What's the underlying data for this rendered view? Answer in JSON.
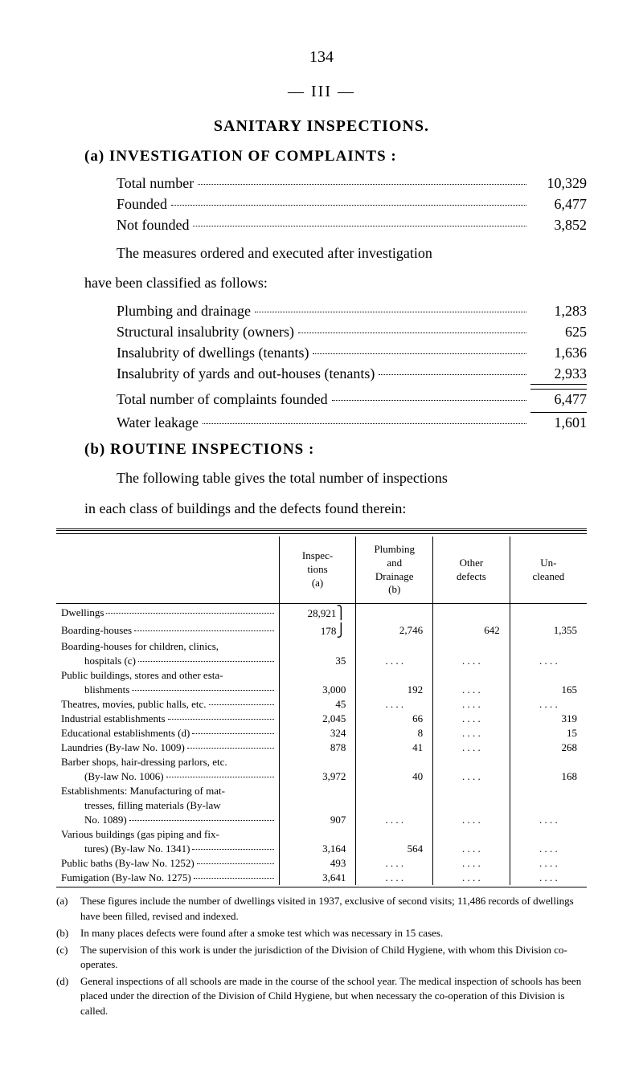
{
  "page_number": "134",
  "section_number": "— III —",
  "title": "SANITARY INSPECTIONS.",
  "subsection_a": {
    "marker": "(a)",
    "title": "INVESTIGATION OF COMPLAINTS :",
    "items": [
      {
        "label": "Total number",
        "value": "10,329"
      },
      {
        "label": "Founded",
        "value": "6,477"
      },
      {
        "label": "Not founded",
        "value": "3,852"
      }
    ],
    "paragraph": "The measures ordered and executed after investigation have been classified as follows:",
    "followup_items": [
      {
        "label": "Plumbing and drainage",
        "value": "1,283"
      },
      {
        "label": "Structural insalubrity (owners)",
        "value": "625"
      },
      {
        "label": "Insalubrity of dwellings (tenants)",
        "value": "1,636"
      },
      {
        "label": "Insalubrity of yards and out-houses (tenants)",
        "value": "2,933",
        "underline": true
      },
      {
        "label": "Total number of complaints founded",
        "value": "6,477",
        "topline": true
      },
      {
        "label": "Water leakage",
        "value": "1,601",
        "topline": true
      }
    ]
  },
  "subsection_b": {
    "marker": "(b)",
    "title": "ROUTINE INSPECTIONS :",
    "paragraph": "The following table gives the total number of inspections in each class of buildings and the defects found therein:"
  },
  "table": {
    "headers": [
      "",
      "Inspec-\ntions\n(a)",
      "Plumbing\nand\nDrainage\n(b)",
      "Other\ndefects",
      "Un-\ncleaned"
    ],
    "rows": [
      {
        "label": "Dwellings",
        "cols": [
          "28,921",
          "",
          "",
          ""
        ],
        "brace_start": true
      },
      {
        "label": "Boarding-houses",
        "cols": [
          "178",
          "2,746",
          "642",
          "1,355"
        ],
        "brace_end": true
      },
      {
        "label": "Boarding-houses for children, clinics,",
        "cols": [
          "",
          "",
          "",
          ""
        ],
        "nodots": true
      },
      {
        "label": "hospitals (c)",
        "cols": [
          "35",
          ". . . .",
          ". . . .",
          ". . . ."
        ],
        "indent": true
      },
      {
        "label": "Public buildings, stores and other esta-",
        "cols": [
          "",
          "",
          "",
          ""
        ],
        "nodots": true
      },
      {
        "label": "blishments",
        "cols": [
          "3,000",
          "192",
          ". . . .",
          "165"
        ],
        "indent": true
      },
      {
        "label": "Theatres, movies, public halls, etc.",
        "cols": [
          "45",
          ". . . .",
          ". . . .",
          ". . . ."
        ]
      },
      {
        "label": "Industrial establishments",
        "cols": [
          "2,045",
          "66",
          ". . . .",
          "319"
        ]
      },
      {
        "label": "Educational establishments (d)",
        "cols": [
          "324",
          "8",
          ". . . .",
          "15"
        ]
      },
      {
        "label": "Laundries (By-law No. 1009)",
        "cols": [
          "878",
          "41",
          ". . . .",
          "268"
        ]
      },
      {
        "label": "Barber shops, hair-dressing parlors, etc.",
        "cols": [
          "",
          "",
          "",
          ""
        ],
        "nodots": true
      },
      {
        "label": "(By-law No. 1006)",
        "cols": [
          "3,972",
          "40",
          ". . . .",
          "168"
        ],
        "indent": true
      },
      {
        "label": "Establishments: Manufacturing of mat-",
        "cols": [
          "",
          "",
          "",
          ""
        ],
        "nodots": true
      },
      {
        "label": "tresses, filling materials (By-law",
        "cols": [
          "",
          "",
          "",
          ""
        ],
        "nodots": true,
        "indent": true
      },
      {
        "label": "No. 1089)",
        "cols": [
          "907",
          ". . . .",
          ". . . .",
          ". . . ."
        ],
        "indent": true
      },
      {
        "label": "Various buildings (gas piping and fix-",
        "cols": [
          "",
          "",
          "",
          ""
        ],
        "nodots": true
      },
      {
        "label": "tures) (By-law No. 1341)",
        "cols": [
          "3,164",
          "564",
          ". . . .",
          ". . . ."
        ],
        "indent": true
      },
      {
        "label": "Public baths (By-law No. 1252)",
        "cols": [
          "493",
          ". . . .",
          ". . . .",
          ". . . ."
        ]
      },
      {
        "label": "Fumigation (By-law No. 1275)",
        "cols": [
          "3,641",
          ". . . .",
          ". . . .",
          ". . . ."
        ]
      }
    ]
  },
  "footnotes": [
    {
      "marker": "(a)",
      "text": "These figures include the number of dwellings visited in 1937, exclusive of second visits; 11,486 records of dwellings have been filled, revised and indexed."
    },
    {
      "marker": "(b)",
      "text": "In many places defects were found after a smoke test which was necessary in 15 cases."
    },
    {
      "marker": "(c)",
      "text": "The supervision of this work is under the jurisdiction of the Division of Child Hygiene, with whom this Division co-operates."
    },
    {
      "marker": "(d)",
      "text": "General inspections of all schools are made in the course of the school year. The medical inspection of schools has been placed under the direction of the Division of Child Hygiene, but when necessary the co-operation of this Division is called."
    }
  ]
}
